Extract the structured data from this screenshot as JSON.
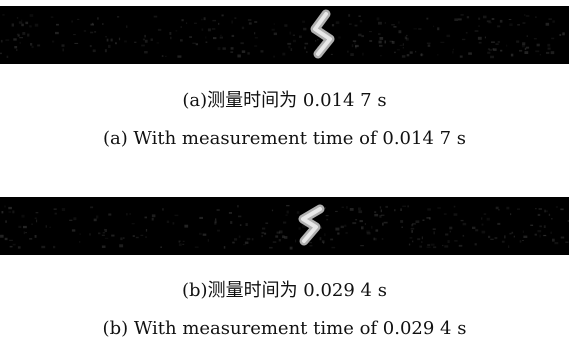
{
  "figure": {
    "panels": [
      {
        "caption_zh": "(a)测量时间为 0.014 7 s",
        "caption_en": "(a) With measurement time of 0.014 7 s"
      },
      {
        "caption_zh": "(b)测量时间为 0.029 4 s",
        "caption_en": "(b) With measurement time of 0.029 4 s"
      }
    ],
    "colors": {
      "background": "#000000",
      "target": "#d8d8d8",
      "noise": "#4a4a4a"
    }
  }
}
